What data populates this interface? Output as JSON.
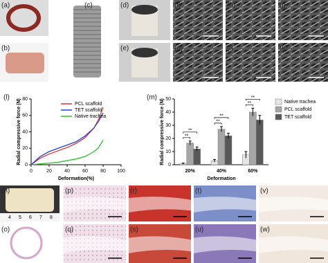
{
  "panels": [
    {
      "label": "(a)"
    },
    {
      "label": "(b)"
    },
    {
      "label": "(c)"
    },
    {
      "label": "(d)"
    },
    {
      "label": "(e)"
    },
    {
      "label": "(f)"
    },
    {
      "label": "(g)"
    },
    {
      "label": "(h)"
    },
    {
      "label": "(i)"
    },
    {
      "label": "(j)"
    },
    {
      "label": "(k)"
    },
    {
      "label": "(n)",
      "ruler": [
        "4",
        "5",
        "6",
        "7",
        "8"
      ]
    },
    {
      "label": "(o)"
    },
    {
      "label": "(p)"
    },
    {
      "label": "(q)"
    },
    {
      "label": "(r)"
    },
    {
      "label": "(s)"
    },
    {
      "label": "(t)"
    },
    {
      "label": "(u)"
    },
    {
      "label": "(v)"
    },
    {
      "label": "(w)"
    }
  ],
  "chart_data": [
    {
      "type": "line",
      "label": "(l)",
      "x_label": "Deformation(%)",
      "y_label": "Radial compressive force (N)",
      "x": [
        0,
        10,
        20,
        30,
        40,
        50,
        60,
        70,
        75,
        80
      ],
      "series": [
        {
          "name": "PCL scaffold",
          "color": "#e8312f",
          "values": [
            0,
            8,
            13,
            17,
            21,
            26,
            33,
            45,
            55,
            70
          ]
        },
        {
          "name": "TET scaffold",
          "color": "#2340d8",
          "values": [
            0,
            10,
            16,
            20,
            24,
            28,
            35,
            45,
            53,
            63
          ]
        },
        {
          "name": "Native trachea",
          "color": "#2fbf2f",
          "values": [
            0,
            1,
            2,
            3,
            5,
            7,
            10,
            16,
            21,
            30
          ]
        }
      ],
      "xlim": [
        0,
        100
      ],
      "xticks": [
        0,
        20,
        40,
        60,
        80,
        100
      ],
      "ylim": [
        0,
        80
      ],
      "yticks": [
        0,
        20,
        40,
        60,
        80
      ]
    },
    {
      "type": "bar",
      "label": "(m)",
      "x_label": "Deformation",
      "y_label": "Radial compressive force (N)",
      "categories": [
        "20%",
        "40%",
        "60%"
      ],
      "series": [
        {
          "name": "Native trachea",
          "color": "#e6e6e6",
          "values": [
            0.8,
            3,
            7.5
          ],
          "errors": [
            0.5,
            1,
            2.5
          ]
        },
        {
          "name": "PCL scaffold",
          "color": "#a6a6a6",
          "values": [
            16.5,
            27,
            40
          ],
          "errors": [
            1.5,
            2,
            3
          ]
        },
        {
          "name": "TET scaffold",
          "color": "#595959",
          "values": [
            12,
            22,
            34
          ],
          "errors": [
            1.5,
            2,
            3.5
          ]
        }
      ],
      "annotations": [
        "**",
        "**",
        "**",
        "**",
        "**",
        "**"
      ],
      "ylim": [
        0,
        50
      ],
      "yticks": [
        0,
        10,
        20,
        30,
        40,
        50
      ]
    }
  ]
}
